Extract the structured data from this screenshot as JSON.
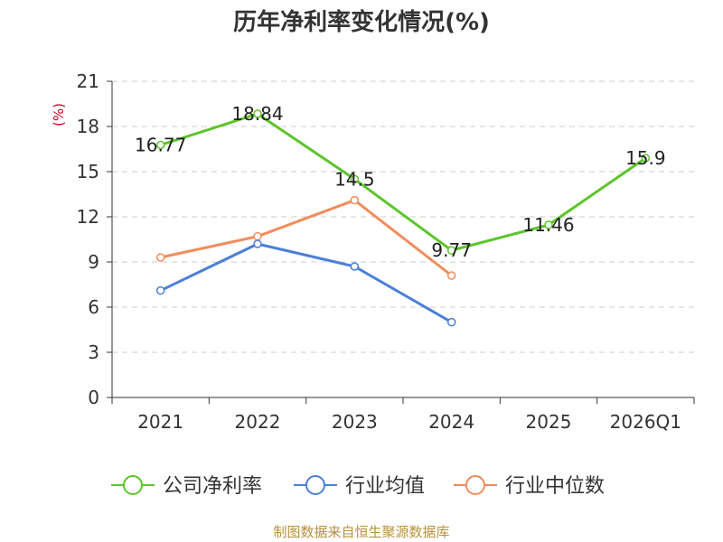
{
  "chart_data": {
    "type": "line",
    "title": "历年净利率变化情况(%)",
    "ylabel": "(%)",
    "categories": [
      "2021",
      "2022",
      "2023",
      "2024",
      "2025",
      "2026Q1"
    ],
    "ylim": [
      0,
      21
    ],
    "yticks": [
      0,
      3,
      6,
      9,
      12,
      15,
      18,
      21
    ],
    "grid": "horizontal-dashed",
    "legend": "bottom",
    "series": [
      {
        "name": "公司净利率",
        "color": "#5cc52b",
        "values": [
          16.77,
          18.84,
          14.5,
          9.77,
          11.46,
          15.9
        ],
        "labels": [
          "16.77",
          "18.84",
          "14.5",
          "9.77",
          "11.46",
          "15.9"
        ]
      },
      {
        "name": "行业均值",
        "color": "#4a7fd8",
        "values": [
          7.1,
          10.2,
          8.7,
          5.0,
          null,
          null
        ]
      },
      {
        "name": "行业中位数",
        "color": "#f28c5b",
        "values": [
          9.3,
          10.7,
          13.1,
          8.1,
          null,
          null
        ]
      }
    ]
  },
  "source": "制图数据来自恒生聚源数据库"
}
